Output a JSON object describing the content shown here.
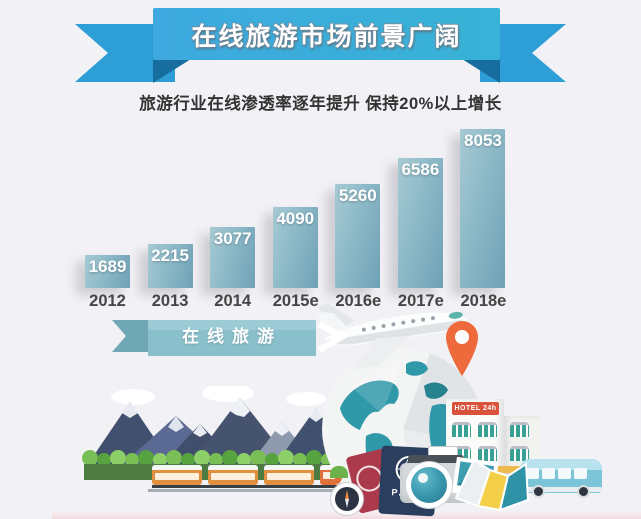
{
  "page": {
    "background": "#f2f1f5",
    "bottom_strip_color": "#f2dbe1"
  },
  "banner": {
    "title": "在线旅游市场前景广阔",
    "colors": {
      "face": "#3da9df",
      "face_right": "#38b2d6",
      "tail": "#2d9fd6",
      "fold": "#176d9e"
    }
  },
  "subtitle": {
    "text": "旅游行业在线渗透率逐年提升 保持20%以上增长"
  },
  "chart_data": {
    "type": "bar",
    "title": "在线旅游市场前景广阔",
    "subtitle": "旅游行业在线渗透率逐年提升 保持20%以上增长",
    "categories": [
      "2012",
      "2013",
      "2014",
      "2015e",
      "2016e",
      "2017e",
      "2018e"
    ],
    "values": [
      1689,
      2215,
      3077,
      4090,
      5260,
      6586,
      8053
    ],
    "xlabel": "",
    "ylabel": "",
    "ylim": [
      0,
      8053
    ],
    "grid": false,
    "legend_position": "none",
    "value_labels_shown": true,
    "bar_color_light": "#a6cad4",
    "bar_color_dark": "#6fa1b7",
    "value_label_color": "#ffffff",
    "axis_label_color": "#454545"
  },
  "online_travel_ribbon": {
    "label": "在线旅游",
    "color": "#8ac0cc"
  },
  "illustration": {
    "hotel": {
      "sign": "HOTEL 24h",
      "sign_color": "#d9523c",
      "window_color": "#3aa093",
      "awning_color": "#eeb94d"
    },
    "passport": {
      "label": "PASS",
      "navy_color": "#2c3e5e",
      "red_color": "#ac3a4d"
    },
    "icons": [
      "airplane-icon",
      "globe-icon",
      "location-pin-icon",
      "clouds-icon",
      "mountains-icon",
      "trees-icon",
      "train-icon",
      "rail-icon",
      "compass-icon",
      "passport-red-icon",
      "passport-navy-icon",
      "camera-icon",
      "travel-map-icon",
      "hotel-icon",
      "bus-icon"
    ],
    "colors": {
      "globe_land": "#2f98a9",
      "globe_shade": "#dde1e4",
      "pin": "#ee6a3c",
      "bus": "#7cc4d8",
      "train": "#e0903f",
      "mountain_dark": "#40506e",
      "mountain_mid": "#5b6a92",
      "mountain_light": "#8e99ae",
      "tree_green": "#7abf55",
      "ground_green": "#4d7b41",
      "camera_lens": "#3c9cb2"
    }
  }
}
